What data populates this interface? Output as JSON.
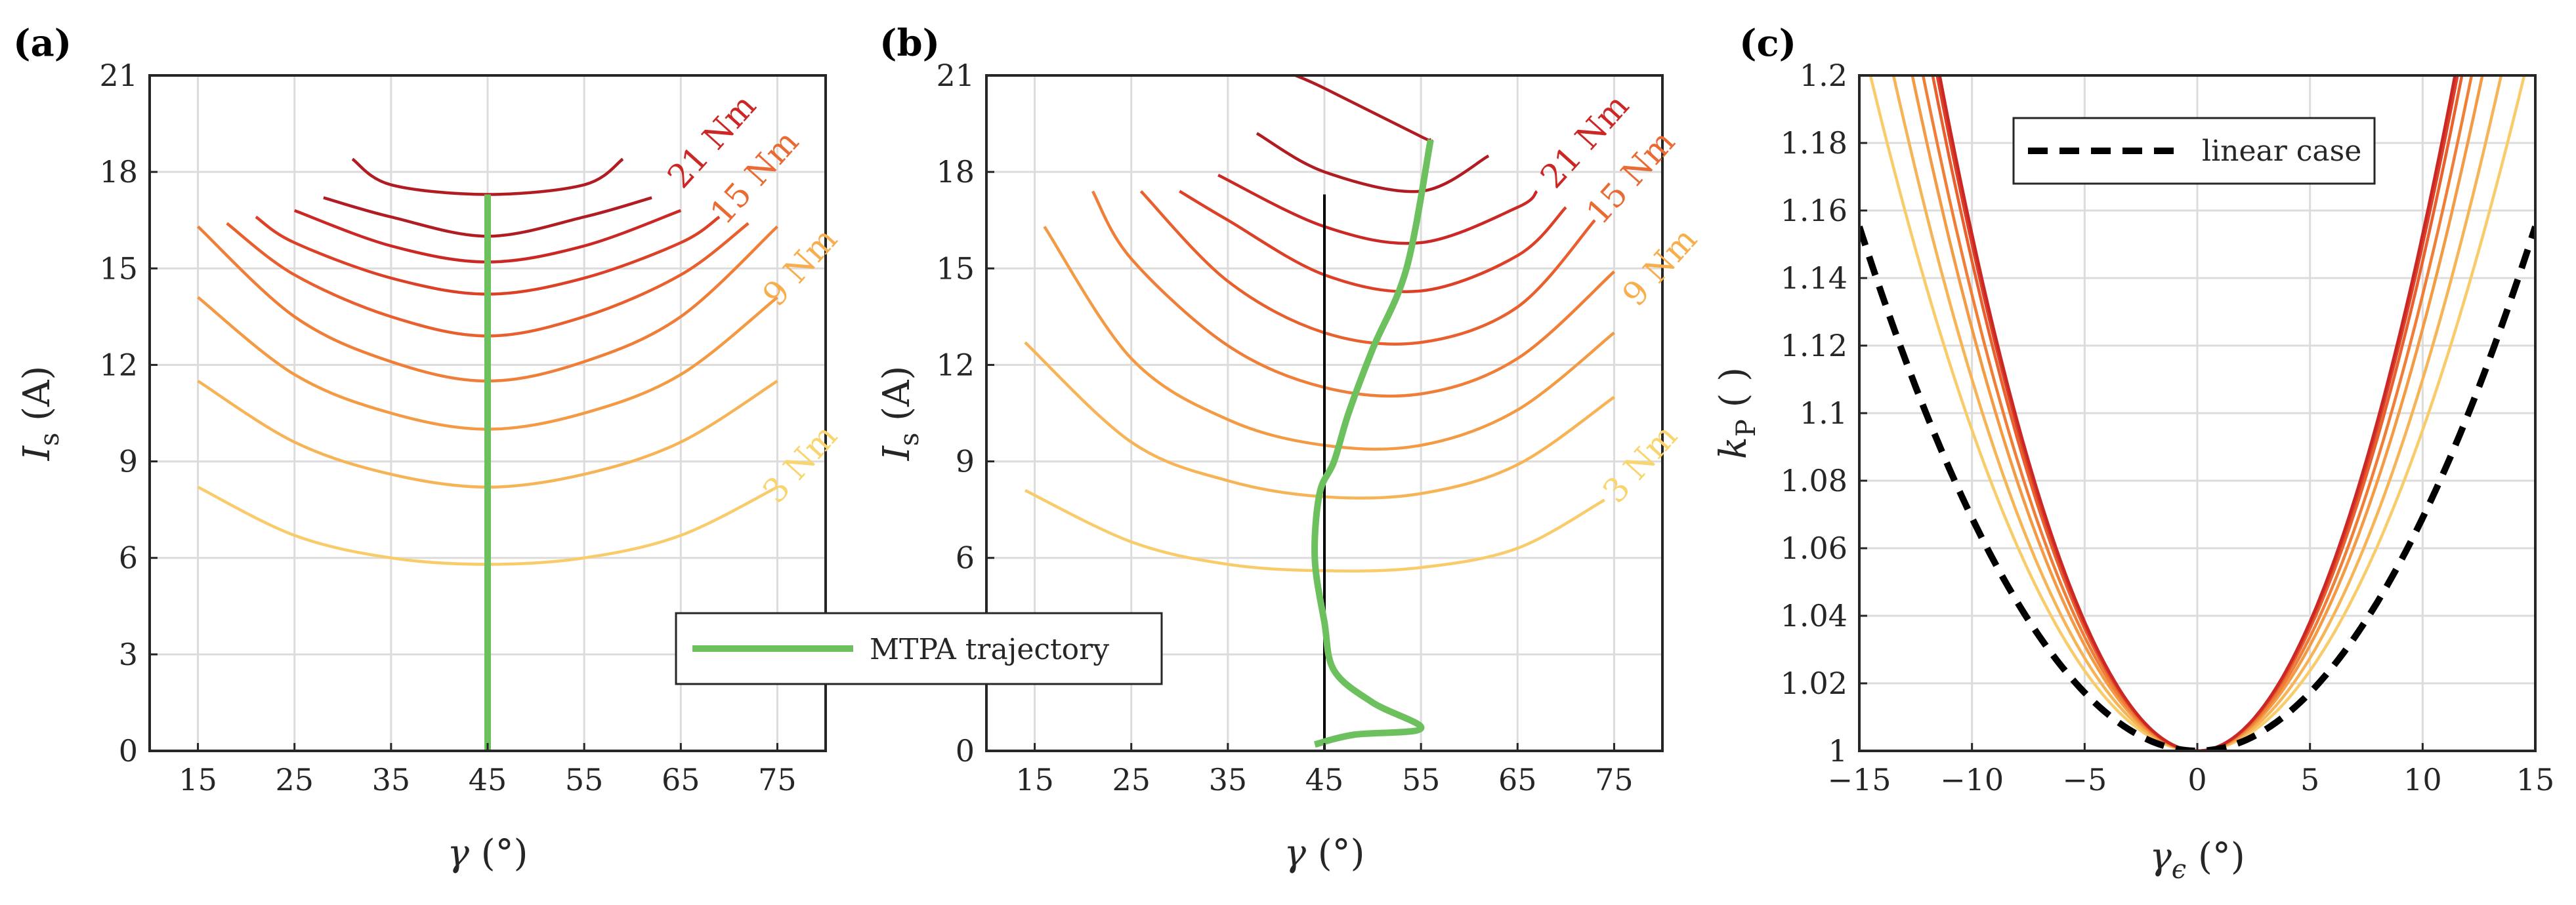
{
  "panel_labels": [
    "(a)",
    "(b)",
    "(c)"
  ],
  "legend_shared": {
    "label": "MTPA trajectory",
    "color": "#6cc15e"
  },
  "legend_c": {
    "label": "linear case",
    "color": "#000000"
  },
  "palette": [
    "#fbe38e",
    "#f9cc6b",
    "#f6b456",
    "#f39a44",
    "#ef7e38",
    "#e8602e",
    "#dc4128",
    "#cb2825",
    "#b01c22"
  ],
  "chart_data": [
    {
      "type": "line",
      "id": "a",
      "title": "(a)",
      "xlabel": "γ (°)",
      "ylabel": "I_s (A)",
      "xlim": [
        10,
        80
      ],
      "ylim": [
        0,
        21
      ],
      "xticks": [
        15,
        25,
        35,
        45,
        55,
        65,
        75
      ],
      "yticks": [
        0,
        3,
        6,
        9,
        12,
        15,
        18,
        21
      ],
      "grid": true,
      "torque_levels_Nm": [
        3,
        6,
        9,
        12,
        15,
        18,
        21
      ],
      "contour_labels": [
        "3 Nm",
        "9 Nm",
        "15 Nm",
        "21 Nm"
      ],
      "series": [
        {
          "name": "3 Nm",
          "x": [
            15,
            25,
            35,
            45,
            55,
            65,
            75
          ],
          "y": [
            8.2,
            6.7,
            6.0,
            5.8,
            6.0,
            6.7,
            8.2
          ]
        },
        {
          "name": "",
          "x": [
            15,
            25,
            35,
            45,
            55,
            65,
            75
          ],
          "y": [
            11.5,
            9.6,
            8.6,
            8.2,
            8.6,
            9.6,
            11.5
          ]
        },
        {
          "name": "",
          "x": [
            15,
            25,
            35,
            45,
            55,
            65,
            75
          ],
          "y": [
            14.1,
            11.7,
            10.5,
            10.0,
            10.5,
            11.7,
            14.1
          ]
        },
        {
          "name": "9 Nm",
          "x": [
            15,
            25,
            35,
            45,
            55,
            65,
            75
          ],
          "y": [
            16.3,
            13.5,
            12.1,
            11.5,
            12.1,
            13.5,
            16.3
          ]
        },
        {
          "name": "",
          "x": [
            18,
            25,
            35,
            45,
            55,
            65,
            72
          ],
          "y": [
            16.4,
            14.8,
            13.5,
            12.9,
            13.5,
            14.8,
            16.4
          ]
        },
        {
          "name": "",
          "x": [
            21,
            25,
            35,
            45,
            55,
            65,
            69
          ],
          "y": [
            16.6,
            15.8,
            14.7,
            14.2,
            14.7,
            15.8,
            16.6
          ]
        },
        {
          "name": "15 Nm",
          "x": [
            25,
            35,
            45,
            55,
            65
          ],
          "y": [
            16.8,
            15.7,
            15.2,
            15.7,
            16.8
          ]
        },
        {
          "name": "",
          "x": [
            28,
            35,
            45,
            55,
            62
          ],
          "y": [
            17.2,
            16.6,
            16.0,
            16.6,
            17.2
          ]
        },
        {
          "name": "21 Nm",
          "x": [
            31,
            35,
            45,
            55,
            59
          ],
          "y": [
            18.4,
            17.6,
            17.3,
            17.6,
            18.4
          ]
        }
      ],
      "trajectory": {
        "name": "MTPA trajectory",
        "x": [
          45,
          45
        ],
        "y": [
          0,
          17.3
        ]
      }
    },
    {
      "type": "line",
      "id": "b",
      "title": "(b)",
      "xlabel": "γ (°)",
      "ylabel": "I_s (A)",
      "xlim": [
        10,
        80
      ],
      "ylim": [
        0,
        21
      ],
      "xticks": [
        15,
        25,
        35,
        45,
        55,
        65,
        75
      ],
      "yticks": [
        0,
        3,
        6,
        9,
        12,
        15,
        18,
        21
      ],
      "grid": true,
      "contour_labels": [
        "3 Nm",
        "9 Nm",
        "15 Nm",
        "21 Nm"
      ],
      "series": [
        {
          "name": "3 Nm",
          "x": [
            14,
            25,
            35,
            45,
            55,
            65,
            74
          ],
          "y": [
            8.1,
            6.5,
            5.8,
            5.6,
            5.7,
            6.3,
            7.8
          ]
        },
        {
          "name": "",
          "x": [
            14,
            25,
            35,
            45,
            55,
            65,
            75
          ],
          "y": [
            12.7,
            9.6,
            8.4,
            7.9,
            8.0,
            8.9,
            11.0
          ]
        },
        {
          "name": "",
          "x": [
            16,
            25,
            35,
            45,
            55,
            65,
            75
          ],
          "y": [
            16.3,
            12.2,
            10.3,
            9.5,
            9.5,
            10.6,
            13.0
          ]
        },
        {
          "name": "9 Nm",
          "x": [
            21,
            25,
            35,
            45,
            55,
            65,
            75
          ],
          "y": [
            17.4,
            15.3,
            12.6,
            11.3,
            11.1,
            12.2,
            14.9
          ]
        },
        {
          "name": "",
          "x": [
            26,
            35,
            45,
            55,
            65,
            73
          ],
          "y": [
            17.4,
            14.6,
            13.0,
            12.7,
            13.8,
            16.5
          ]
        },
        {
          "name": "",
          "x": [
            30,
            35,
            45,
            55,
            65,
            70
          ],
          "y": [
            17.4,
            16.5,
            14.8,
            14.3,
            15.4,
            16.9
          ]
        },
        {
          "name": "15 Nm",
          "x": [
            34,
            45,
            55,
            65,
            67
          ],
          "y": [
            17.9,
            16.3,
            15.8,
            16.9,
            17.4
          ]
        },
        {
          "name": "",
          "x": [
            38,
            45,
            55,
            62
          ],
          "y": [
            19.2,
            18.0,
            17.4,
            18.5
          ]
        },
        {
          "name": "21 Nm",
          "x": [
            42,
            45,
            55,
            56
          ],
          "y": [
            21.0,
            20.6,
            19.1,
            19.0
          ]
        }
      ],
      "reference_line": {
        "x": [
          45,
          45
        ],
        "y": [
          0,
          17.3
        ]
      },
      "trajectory": {
        "name": "MTPA trajectory",
        "x": [
          44,
          48,
          55,
          50,
          46,
          45,
          44,
          44.5,
          46,
          47.5,
          50,
          53.5,
          56
        ],
        "y": [
          0.2,
          0.5,
          0.7,
          1.5,
          2.5,
          4.0,
          6.0,
          8.0,
          9.0,
          10.5,
          12.5,
          15.0,
          19.0
        ]
      }
    },
    {
      "type": "line",
      "id": "c",
      "title": "(c)",
      "xlabel": "γ_ε (°)",
      "ylabel": "k_P ( )",
      "xlim": [
        -15,
        15
      ],
      "ylim": [
        1,
        1.2
      ],
      "xticks": [
        -15,
        -10,
        -5,
        0,
        5,
        10,
        15
      ],
      "yticks": [
        1,
        1.02,
        1.04,
        1.06,
        1.08,
        1.1,
        1.12,
        1.14,
        1.16,
        1.18,
        1.2
      ],
      "grid": true,
      "legend_position": "top-left",
      "series": [
        {
          "name": "3 Nm",
          "k": 0.00095,
          "xmin": -15,
          "xmax": 15
        },
        {
          "name": "",
          "k": 0.0011,
          "xmin": -13.5,
          "xmax": 15
        },
        {
          "name": "9 Nm",
          "k": 0.00125,
          "xmin": -13.5,
          "xmax": 14.5
        },
        {
          "name": "",
          "k": 0.00135,
          "xmin": -13.5,
          "xmax": 13.5
        },
        {
          "name": "15 Nm",
          "k": 0.00145,
          "xmin": -13.5,
          "xmax": 13
        },
        {
          "name": "",
          "k": 0.0015,
          "xmin": -13.5,
          "xmax": 12.5
        },
        {
          "name": "21 Nm",
          "k": 0.00153,
          "xmin": -13.5,
          "xmax": 12
        }
      ],
      "linear_case": {
        "name": "linear case",
        "k": 0.00069,
        "xmin": -15,
        "xmax": 15
      }
    }
  ]
}
